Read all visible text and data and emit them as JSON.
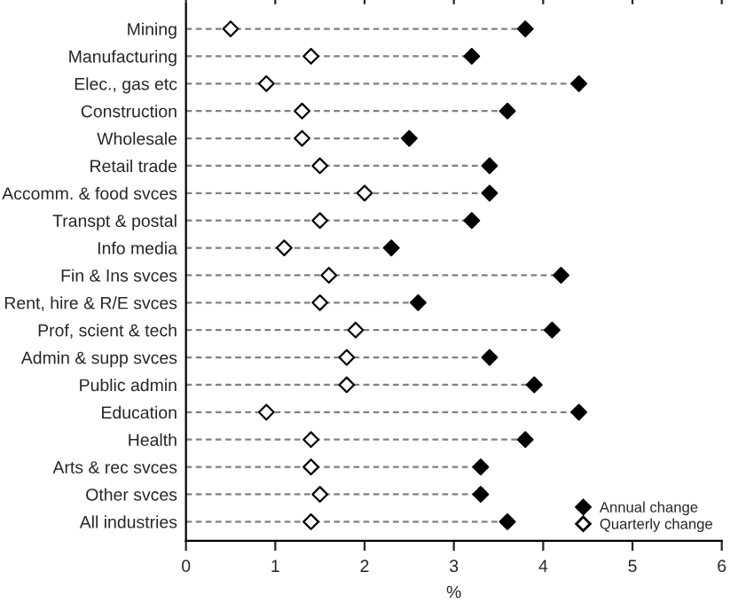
{
  "chart_data": {
    "type": "scatter",
    "orientation": "horizontal",
    "xlabel": "%",
    "categories": [
      "Mining",
      "Manufacturing",
      "Elec., gas etc",
      "Construction",
      "Wholesale",
      "Retail trade",
      "Accomm. & food svces",
      "Transpt & postal",
      "Info media",
      "Fin & Ins svces",
      "Rent, hire & R/E svces",
      "Prof, scient & tech",
      "Admin & supp svces",
      "Public admin",
      "Education",
      "Health",
      "Arts & rec svces",
      "Other svces",
      "All industries"
    ],
    "series": [
      {
        "name": "Annual change",
        "color": "#000000",
        "marker": "diamond",
        "values": [
          3.8,
          3.2,
          4.4,
          3.6,
          2.5,
          3.4,
          3.4,
          3.2,
          2.3,
          4.2,
          2.6,
          4.1,
          3.4,
          3.9,
          4.4,
          3.8,
          3.3,
          3.3,
          3.6
        ]
      },
      {
        "name": "Quarterly change",
        "color": "#ffffff",
        "marker": "diamond",
        "values": [
          0.5,
          1.4,
          0.9,
          1.3,
          1.3,
          1.5,
          2.0,
          1.5,
          1.1,
          1.6,
          1.5,
          1.9,
          1.8,
          1.8,
          0.9,
          1.4,
          1.4,
          1.5,
          1.4
        ]
      }
    ],
    "xlim": [
      0,
      6
    ],
    "xticks": [
      0,
      1,
      2,
      3,
      4,
      5,
      6
    ],
    "legend": "bottom right",
    "grid": "y",
    "line_style": "dashed"
  }
}
